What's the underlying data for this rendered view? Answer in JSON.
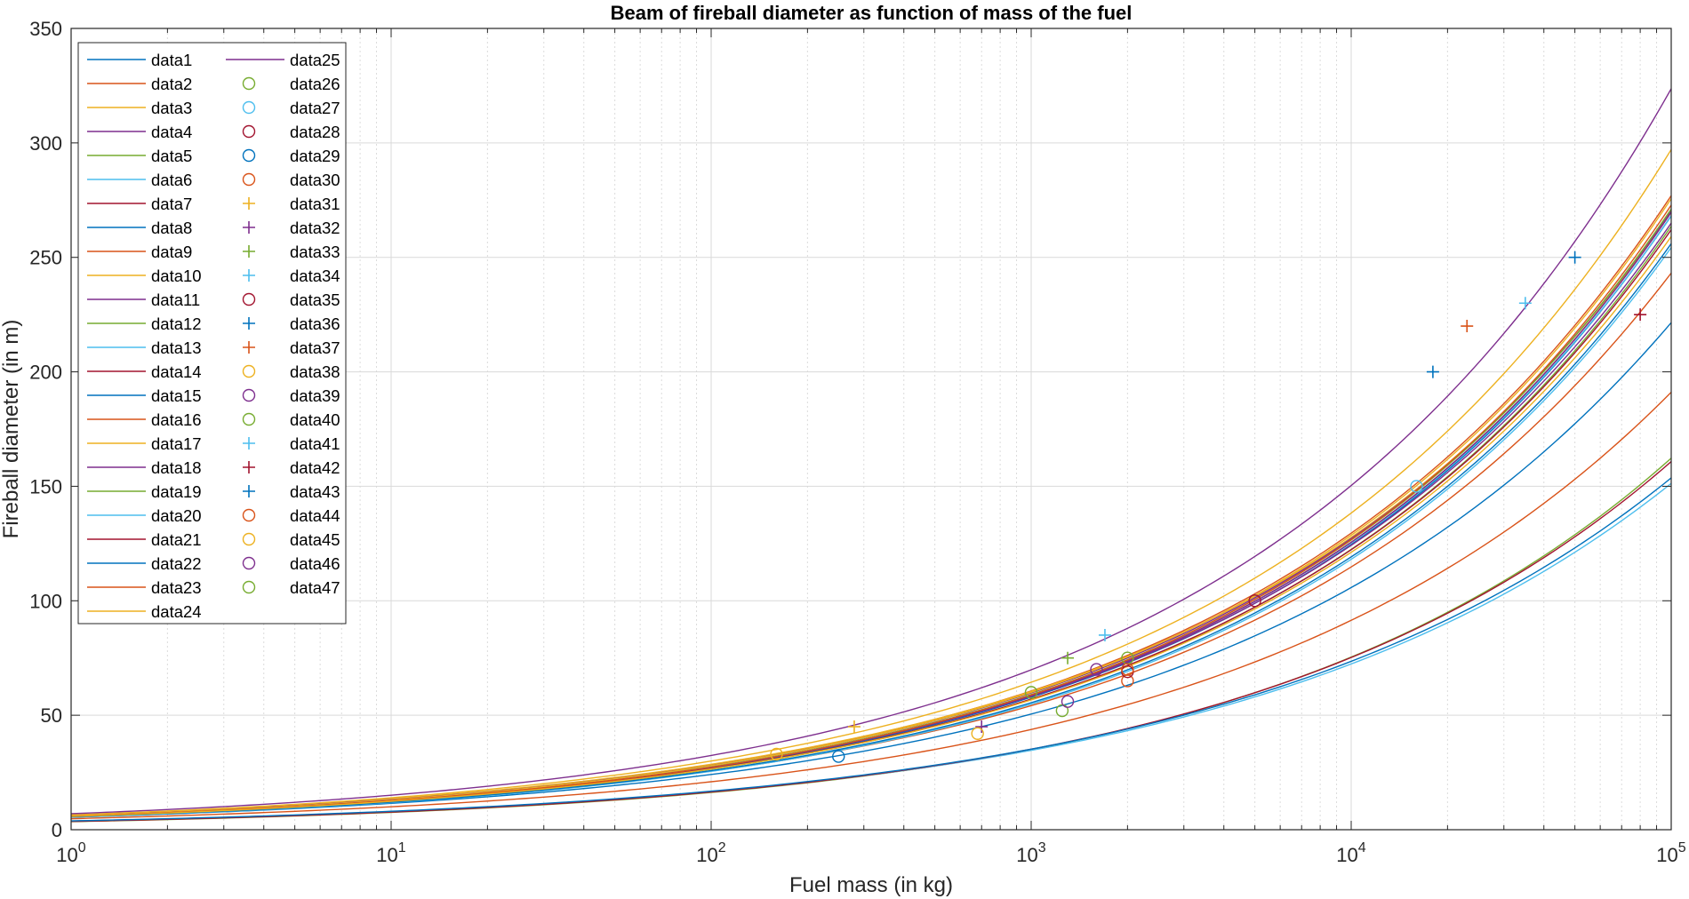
{
  "chart_data": {
    "type": "line",
    "title": "Beam of fireball diameter as function of mass of the fuel",
    "xlabel": "Fuel mass (in kg)",
    "ylabel": "Fireball diameter (in m)",
    "xscale": "log",
    "xlim": [
      1,
      100000
    ],
    "ylim": [
      0,
      350
    ],
    "x_tick_labels": [
      {
        "x": 1,
        "base": "10",
        "exp": "0"
      },
      {
        "x": 10,
        "base": "10",
        "exp": "1"
      },
      {
        "x": 100,
        "base": "10",
        "exp": "2"
      },
      {
        "x": 1000,
        "base": "10",
        "exp": "3"
      },
      {
        "x": 10000,
        "base": "10",
        "exp": "4"
      },
      {
        "x": 100000,
        "base": "10",
        "exp": "5"
      }
    ],
    "y_ticks": [
      "0",
      "50",
      "100",
      "150",
      "200",
      "250",
      "300",
      "350"
    ],
    "grid": true,
    "legend_position": "top-left",
    "series": [
      {
        "name": "data1",
        "kind": "line",
        "color": "#0072BD",
        "coef": 5.8,
        "exp": 0.333
      },
      {
        "name": "data2",
        "kind": "line",
        "color": "#D95319",
        "coef": 6.2,
        "exp": 0.33
      },
      {
        "name": "data3",
        "kind": "line",
        "color": "#EDB120",
        "coef": 6.4,
        "exp": 0.325
      },
      {
        "name": "data4",
        "kind": "line",
        "color": "#7E2F8E",
        "coef": 6.2,
        "exp": 0.328
      },
      {
        "name": "data5",
        "kind": "line",
        "color": "#77AC30",
        "coef": 6.0,
        "exp": 0.331
      },
      {
        "name": "data6",
        "kind": "line",
        "color": "#4DBEEE",
        "coef": 6.0,
        "exp": 0.33
      },
      {
        "name": "data7",
        "kind": "line",
        "color": "#A2142F",
        "coef": 5.9,
        "exp": 0.332
      },
      {
        "name": "data8",
        "kind": "line",
        "color": "#0072BD",
        "coef": 5.5,
        "exp": 0.321
      },
      {
        "name": "data9",
        "kind": "line",
        "color": "#D95319",
        "coef": 4.8,
        "exp": 0.32
      },
      {
        "name": "data10",
        "kind": "line",
        "color": "#EDB120",
        "coef": 6.5,
        "exp": 0.332
      },
      {
        "name": "data11",
        "kind": "line",
        "color": "#7E2F8E",
        "coef": 6.0,
        "exp": 0.329
      },
      {
        "name": "data12",
        "kind": "line",
        "color": "#77AC30",
        "coef": 3.51,
        "exp": 0.333
      },
      {
        "name": "data13",
        "kind": "line",
        "color": "#4DBEEE",
        "coef": 3.8,
        "exp": 0.32
      },
      {
        "name": "data14",
        "kind": "line",
        "color": "#A2142F",
        "coef": 3.6,
        "exp": 0.33
      },
      {
        "name": "data15",
        "kind": "line",
        "color": "#0072BD",
        "coef": 3.86,
        "exp": 0.32
      },
      {
        "name": "data16",
        "kind": "line",
        "color": "#D95319",
        "coef": 5.7,
        "exp": 0.326
      },
      {
        "name": "data17",
        "kind": "line",
        "color": "#EDB120",
        "coef": 6.1,
        "exp": 0.331
      },
      {
        "name": "data18",
        "kind": "line",
        "color": "#7E2F8E",
        "coef": 5.9,
        "exp": 0.332
      },
      {
        "name": "data19",
        "kind": "line",
        "color": "#77AC30",
        "coef": 5.7,
        "exp": 0.333
      },
      {
        "name": "data20",
        "kind": "line",
        "color": "#4DBEEE",
        "coef": 5.5,
        "exp": 0.333
      },
      {
        "name": "data21",
        "kind": "line",
        "color": "#A2142F",
        "coef": 5.8,
        "exp": 0.331
      },
      {
        "name": "data22",
        "kind": "line",
        "color": "#0072BD",
        "coef": 5.6,
        "exp": 0.332
      },
      {
        "name": "data23",
        "kind": "line",
        "color": "#D95319",
        "coef": 5.9,
        "exp": 0.333
      },
      {
        "name": "data24",
        "kind": "line",
        "color": "#EDB120",
        "coef": 5.8,
        "exp": 0.33
      },
      {
        "name": "data25",
        "kind": "line",
        "color": "#7E2F8E",
        "coef": 7.0,
        "exp": 0.333
      },
      {
        "name": "data26",
        "kind": "marker",
        "marker": "o",
        "color": "#77AC30",
        "x": [
          1250
        ],
        "y": [
          52
        ]
      },
      {
        "name": "data27",
        "kind": "marker",
        "marker": "o",
        "color": "#4DBEEE",
        "x": [
          16000
        ],
        "y": [
          150
        ]
      },
      {
        "name": "data28",
        "kind": "marker",
        "marker": "o",
        "color": "#A2142F",
        "x": [
          5000
        ],
        "y": [
          100
        ]
      },
      {
        "name": "data29",
        "kind": "marker",
        "marker": "o",
        "color": "#0072BD",
        "x": [
          250
        ],
        "y": [
          32
        ]
      },
      {
        "name": "data30",
        "kind": "marker",
        "marker": "o",
        "color": "#D95319",
        "x": [
          2000
        ],
        "y": [
          65
        ]
      },
      {
        "name": "data31",
        "kind": "marker",
        "marker": "+",
        "color": "#EDB120",
        "x": [
          280
        ],
        "y": [
          45
        ]
      },
      {
        "name": "data32",
        "kind": "marker",
        "marker": "+",
        "color": "#7E2F8E",
        "x": [
          700
        ],
        "y": [
          45
        ]
      },
      {
        "name": "data33",
        "kind": "marker",
        "marker": "+",
        "color": "#77AC30",
        "x": [
          1300
        ],
        "y": [
          75
        ]
      },
      {
        "name": "data34",
        "kind": "marker",
        "marker": "+",
        "color": "#4DBEEE",
        "x": [
          35000
        ],
        "y": [
          230
        ]
      },
      {
        "name": "data35",
        "kind": "marker",
        "marker": "o",
        "color": "#A2142F",
        "x": [
          2000
        ],
        "y": [
          69
        ]
      },
      {
        "name": "data36",
        "kind": "marker",
        "marker": "+",
        "color": "#0072BD",
        "x": [
          18000
        ],
        "y": [
          200
        ]
      },
      {
        "name": "data37",
        "kind": "marker",
        "marker": "+",
        "color": "#D95319",
        "x": [
          23000
        ],
        "y": [
          220
        ]
      },
      {
        "name": "data38",
        "kind": "marker",
        "marker": "o",
        "color": "#EDB120",
        "x": [
          680
        ],
        "y": [
          42
        ]
      },
      {
        "name": "data39",
        "kind": "marker",
        "marker": "o",
        "color": "#7E2F8E",
        "x": [
          1600
        ],
        "y": [
          70
        ]
      },
      {
        "name": "data40",
        "kind": "marker",
        "marker": "o",
        "color": "#77AC30",
        "x": [
          2000
        ],
        "y": [
          75
        ]
      },
      {
        "name": "data41",
        "kind": "marker",
        "marker": "+",
        "color": "#4DBEEE",
        "x": [
          1700
        ],
        "y": [
          85
        ]
      },
      {
        "name": "data42",
        "kind": "marker",
        "marker": "+",
        "color": "#A2142F",
        "x": [
          80000
        ],
        "y": [
          225
        ]
      },
      {
        "name": "data43",
        "kind": "marker",
        "marker": "+",
        "color": "#0072BD",
        "x": [
          50000
        ],
        "y": [
          250
        ]
      },
      {
        "name": "data44",
        "kind": "marker",
        "marker": "o",
        "color": "#D95319",
        "x": [
          2000
        ],
        "y": [
          70
        ]
      },
      {
        "name": "data45",
        "kind": "marker",
        "marker": "o",
        "color": "#EDB120",
        "x": [
          160
        ],
        "y": [
          33
        ]
      },
      {
        "name": "data46",
        "kind": "marker",
        "marker": "o",
        "color": "#7E2F8E",
        "x": [
          1300
        ],
        "y": [
          56
        ]
      },
      {
        "name": "data47",
        "kind": "marker",
        "marker": "o",
        "color": "#77AC30",
        "x": [
          1000
        ],
        "y": [
          60
        ]
      }
    ]
  }
}
